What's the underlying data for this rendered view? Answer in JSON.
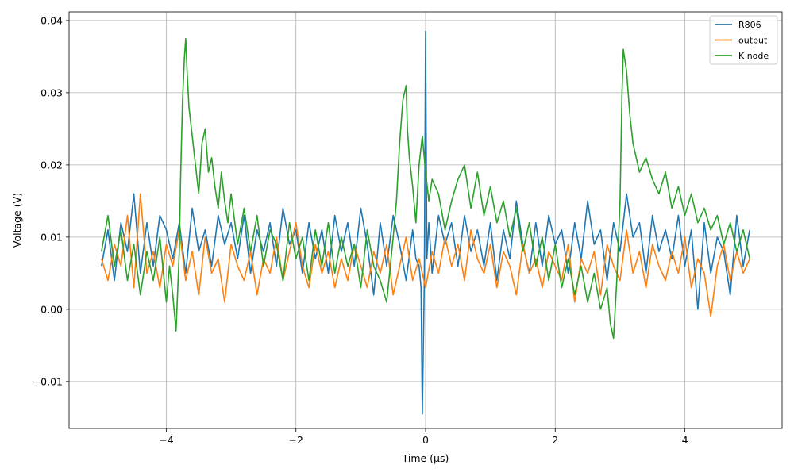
{
  "chart_data": {
    "type": "line",
    "title": "",
    "xlabel": "Time (µs)",
    "ylabel": "Voltage (V)",
    "xlim": [
      -5.5,
      5.5
    ],
    "ylim": [
      -0.0165,
      0.0412
    ],
    "xticks": [
      -4,
      -2,
      0,
      2,
      4
    ],
    "xtick_labels": [
      "−4",
      "−2",
      "0",
      "2",
      "4"
    ],
    "yticks": [
      -0.01,
      0.0,
      0.01,
      0.02,
      0.03,
      0.04
    ],
    "ytick_labels": [
      "−0.01",
      "0.00",
      "0.01",
      "0.02",
      "0.03",
      "0.04"
    ],
    "grid": true,
    "legend_position": "top-right",
    "series": [
      {
        "name": "R806",
        "color": "#1f77b4",
        "x": [
          -5.0,
          -4.9,
          -4.8,
          -4.7,
          -4.6,
          -4.5,
          -4.4,
          -4.3,
          -4.2,
          -4.1,
          -4.0,
          -3.9,
          -3.8,
          -3.7,
          -3.6,
          -3.5,
          -3.4,
          -3.3,
          -3.2,
          -3.1,
          -3.0,
          -2.9,
          -2.8,
          -2.7,
          -2.6,
          -2.5,
          -2.4,
          -2.3,
          -2.2,
          -2.1,
          -2.0,
          -1.9,
          -1.8,
          -1.7,
          -1.6,
          -1.5,
          -1.4,
          -1.3,
          -1.2,
          -1.1,
          -1.0,
          -0.9,
          -0.8,
          -0.7,
          -0.6,
          -0.5,
          -0.4,
          -0.3,
          -0.2,
          -0.15,
          -0.1,
          -0.07,
          -0.05,
          -0.02,
          0.0,
          0.02,
          0.05,
          0.1,
          0.2,
          0.3,
          0.4,
          0.5,
          0.6,
          0.7,
          0.8,
          0.9,
          1.0,
          1.1,
          1.2,
          1.3,
          1.4,
          1.5,
          1.6,
          1.7,
          1.8,
          1.9,
          2.0,
          2.1,
          2.2,
          2.3,
          2.4,
          2.5,
          2.6,
          2.7,
          2.8,
          2.9,
          3.0,
          3.1,
          3.2,
          3.3,
          3.4,
          3.5,
          3.6,
          3.7,
          3.8,
          3.9,
          4.0,
          4.1,
          4.2,
          4.3,
          4.4,
          4.5,
          4.6,
          4.7,
          4.8,
          4.9,
          5.0
        ],
        "y": [
          0.006,
          0.011,
          0.004,
          0.012,
          0.008,
          0.016,
          0.005,
          0.012,
          0.006,
          0.013,
          0.011,
          0.007,
          0.012,
          0.005,
          0.014,
          0.008,
          0.011,
          0.006,
          0.013,
          0.009,
          0.012,
          0.007,
          0.013,
          0.005,
          0.011,
          0.008,
          0.012,
          0.006,
          0.014,
          0.009,
          0.011,
          0.005,
          0.012,
          0.007,
          0.011,
          0.005,
          0.013,
          0.008,
          0.012,
          0.006,
          0.014,
          0.009,
          0.002,
          0.012,
          0.006,
          0.013,
          0.009,
          0.004,
          0.011,
          0.007,
          0.006,
          0.003,
          -0.0145,
          0.004,
          0.0385,
          0.007,
          0.012,
          0.005,
          0.013,
          0.009,
          0.012,
          0.006,
          0.013,
          0.008,
          0.011,
          0.006,
          0.012,
          0.004,
          0.011,
          0.007,
          0.015,
          0.009,
          0.005,
          0.012,
          0.006,
          0.013,
          0.009,
          0.011,
          0.005,
          0.012,
          0.007,
          0.015,
          0.009,
          0.011,
          0.004,
          0.012,
          0.008,
          0.016,
          0.01,
          0.012,
          0.005,
          0.013,
          0.008,
          0.011,
          0.007,
          0.013,
          0.006,
          0.011,
          0.0,
          0.012,
          0.005,
          0.01,
          0.008,
          0.002,
          0.013,
          0.006,
          0.011
        ]
      },
      {
        "name": "output",
        "color": "#ff7f0e",
        "x": [
          -5.0,
          -4.9,
          -4.8,
          -4.7,
          -4.6,
          -4.5,
          -4.4,
          -4.3,
          -4.2,
          -4.1,
          -4.0,
          -3.9,
          -3.8,
          -3.7,
          -3.6,
          -3.5,
          -3.4,
          -3.3,
          -3.2,
          -3.1,
          -3.0,
          -2.9,
          -2.8,
          -2.7,
          -2.6,
          -2.5,
          -2.4,
          -2.3,
          -2.2,
          -2.1,
          -2.0,
          -1.9,
          -1.8,
          -1.7,
          -1.6,
          -1.5,
          -1.4,
          -1.3,
          -1.2,
          -1.1,
          -1.0,
          -0.9,
          -0.8,
          -0.7,
          -0.6,
          -0.5,
          -0.4,
          -0.3,
          -0.2,
          -0.1,
          0.0,
          0.1,
          0.2,
          0.3,
          0.4,
          0.5,
          0.6,
          0.7,
          0.8,
          0.9,
          1.0,
          1.1,
          1.2,
          1.3,
          1.4,
          1.5,
          1.6,
          1.7,
          1.8,
          1.9,
          2.0,
          2.1,
          2.2,
          2.3,
          2.4,
          2.5,
          2.6,
          2.7,
          2.8,
          2.9,
          3.0,
          3.1,
          3.2,
          3.3,
          3.4,
          3.5,
          3.6,
          3.7,
          3.8,
          3.9,
          4.0,
          4.1,
          4.2,
          4.3,
          4.4,
          4.5,
          4.6,
          4.7,
          4.8,
          4.9,
          5.0
        ],
        "y": [
          0.007,
          0.004,
          0.009,
          0.006,
          0.013,
          0.003,
          0.016,
          0.005,
          0.008,
          0.003,
          0.009,
          0.006,
          0.011,
          0.004,
          0.008,
          0.002,
          0.01,
          0.005,
          0.007,
          0.001,
          0.009,
          0.006,
          0.004,
          0.008,
          0.002,
          0.007,
          0.005,
          0.01,
          0.004,
          0.008,
          0.012,
          0.006,
          0.003,
          0.009,
          0.005,
          0.008,
          0.003,
          0.007,
          0.004,
          0.009,
          0.006,
          0.003,
          0.008,
          0.005,
          0.009,
          0.002,
          0.006,
          0.01,
          0.004,
          0.007,
          0.003,
          0.008,
          0.005,
          0.01,
          0.006,
          0.009,
          0.004,
          0.011,
          0.007,
          0.005,
          0.009,
          0.003,
          0.008,
          0.006,
          0.002,
          0.009,
          0.005,
          0.007,
          0.003,
          0.008,
          0.006,
          0.004,
          0.009,
          0.001,
          0.007,
          0.005,
          0.008,
          0.002,
          0.009,
          0.006,
          0.004,
          0.011,
          0.005,
          0.008,
          0.003,
          0.009,
          0.006,
          0.004,
          0.008,
          0.005,
          0.01,
          0.003,
          0.007,
          0.005,
          -0.001,
          0.006,
          0.009,
          0.004,
          0.008,
          0.005,
          0.007
        ]
      },
      {
        "name": "K node",
        "color": "#2ca02c",
        "x": [
          -5.0,
          -4.9,
          -4.8,
          -4.7,
          -4.6,
          -4.5,
          -4.4,
          -4.3,
          -4.2,
          -4.1,
          -4.0,
          -3.95,
          -3.9,
          -3.85,
          -3.8,
          -3.78,
          -3.75,
          -3.72,
          -3.7,
          -3.68,
          -3.65,
          -3.6,
          -3.55,
          -3.5,
          -3.45,
          -3.4,
          -3.35,
          -3.3,
          -3.25,
          -3.2,
          -3.15,
          -3.1,
          -3.05,
          -3.0,
          -2.9,
          -2.8,
          -2.7,
          -2.6,
          -2.5,
          -2.4,
          -2.3,
          -2.2,
          -2.1,
          -2.0,
          -1.9,
          -1.8,
          -1.7,
          -1.6,
          -1.5,
          -1.4,
          -1.3,
          -1.2,
          -1.1,
          -1.0,
          -0.9,
          -0.8,
          -0.7,
          -0.6,
          -0.5,
          -0.45,
          -0.4,
          -0.35,
          -0.3,
          -0.28,
          -0.25,
          -0.2,
          -0.15,
          -0.1,
          -0.05,
          0.0,
          0.05,
          0.1,
          0.2,
          0.3,
          0.4,
          0.5,
          0.6,
          0.7,
          0.8,
          0.9,
          1.0,
          1.1,
          1.2,
          1.3,
          1.4,
          1.5,
          1.6,
          1.7,
          1.8,
          1.9,
          2.0,
          2.1,
          2.2,
          2.3,
          2.4,
          2.5,
          2.6,
          2.7,
          2.8,
          2.85,
          2.9,
          2.95,
          3.0,
          3.03,
          3.05,
          3.1,
          3.15,
          3.2,
          3.3,
          3.4,
          3.5,
          3.6,
          3.7,
          3.8,
          3.9,
          4.0,
          4.1,
          4.2,
          4.3,
          4.4,
          4.5,
          4.6,
          4.7,
          4.8,
          4.9,
          5.0
        ],
        "y": [
          0.008,
          0.013,
          0.006,
          0.011,
          0.004,
          0.009,
          0.002,
          0.008,
          0.004,
          0.01,
          0.001,
          0.006,
          0.002,
          -0.003,
          0.008,
          0.018,
          0.029,
          0.035,
          0.0375,
          0.033,
          0.028,
          0.024,
          0.02,
          0.016,
          0.023,
          0.025,
          0.019,
          0.021,
          0.017,
          0.014,
          0.019,
          0.015,
          0.012,
          0.016,
          0.009,
          0.014,
          0.008,
          0.013,
          0.006,
          0.011,
          0.009,
          0.004,
          0.012,
          0.007,
          0.01,
          0.004,
          0.011,
          0.006,
          0.012,
          0.005,
          0.01,
          0.006,
          0.009,
          0.003,
          0.011,
          0.006,
          0.004,
          0.001,
          0.01,
          0.015,
          0.023,
          0.029,
          0.031,
          0.025,
          0.021,
          0.017,
          0.012,
          0.02,
          0.024,
          0.019,
          0.015,
          0.018,
          0.016,
          0.011,
          0.015,
          0.018,
          0.02,
          0.014,
          0.019,
          0.013,
          0.017,
          0.012,
          0.015,
          0.01,
          0.014,
          0.008,
          0.012,
          0.006,
          0.01,
          0.004,
          0.009,
          0.003,
          0.007,
          0.002,
          0.006,
          0.001,
          0.005,
          0.0,
          0.003,
          -0.002,
          -0.004,
          0.004,
          0.015,
          0.03,
          0.036,
          0.033,
          0.027,
          0.023,
          0.019,
          0.021,
          0.018,
          0.016,
          0.019,
          0.014,
          0.017,
          0.013,
          0.016,
          0.012,
          0.014,
          0.011,
          0.013,
          0.009,
          0.012,
          0.008,
          0.011,
          0.007
        ]
      }
    ]
  }
}
